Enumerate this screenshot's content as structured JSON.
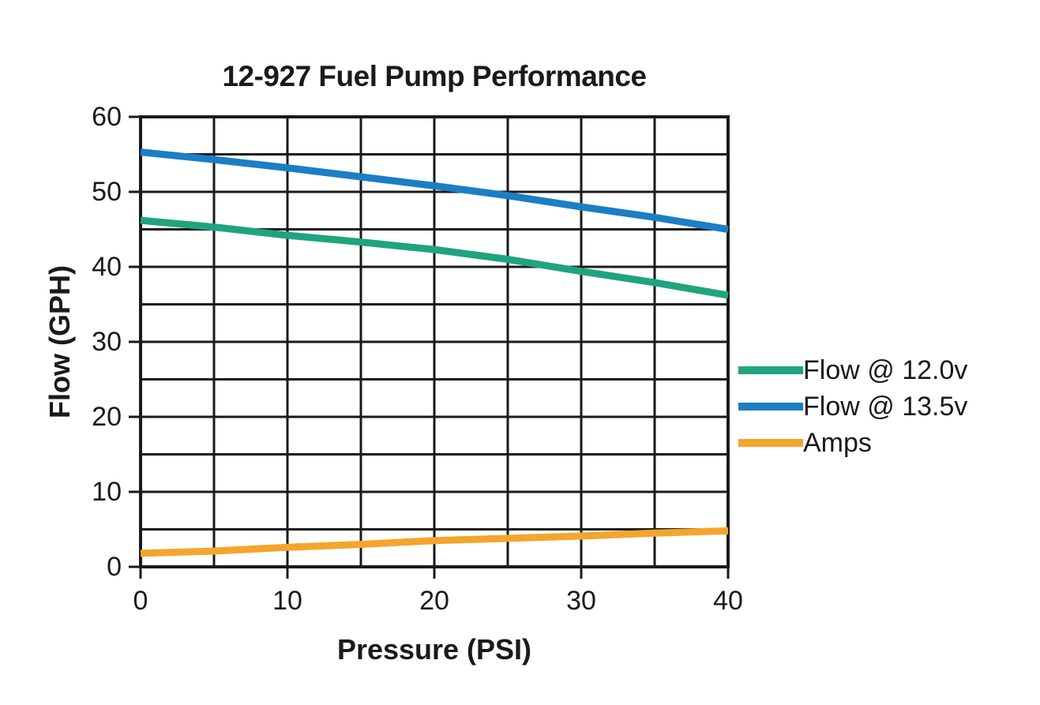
{
  "page": {
    "background": "#ffffff",
    "text_color": "#1a1a1a"
  },
  "chart_data": {
    "type": "line",
    "title": "12-927 Fuel Pump Performance",
    "xlabel": "Pressure (PSI)",
    "ylabel": "Flow (GPH)",
    "xlim": [
      0,
      40
    ],
    "ylim": [
      0,
      60
    ],
    "x_major_ticks": [
      0,
      10,
      20,
      30,
      40
    ],
    "y_major_ticks": [
      0,
      10,
      20,
      30,
      40,
      50,
      60
    ],
    "grid": "on",
    "grid_interval": 5,
    "grid_color": "#1a1a1a",
    "legend_position": "right-middle",
    "x": [
      0,
      5,
      10,
      15,
      20,
      25,
      30,
      35,
      40
    ],
    "series": [
      {
        "name": "Flow @ 12.0v",
        "color": "#20A47E",
        "values": [
          46.2,
          45.3,
          44.2,
          43.3,
          42.3,
          41.0,
          39.4,
          37.9,
          36.2
        ]
      },
      {
        "name": "Flow @ 13.5v",
        "color": "#1C7EC3",
        "values": [
          55.3,
          54.3,
          53.2,
          52.0,
          50.8,
          49.5,
          48.0,
          46.6,
          45.0
        ]
      },
      {
        "name": "Amps",
        "color": "#F4A52D",
        "values": [
          1.8,
          2.1,
          2.6,
          3.0,
          3.5,
          3.8,
          4.1,
          4.5,
          4.8
        ]
      }
    ]
  }
}
